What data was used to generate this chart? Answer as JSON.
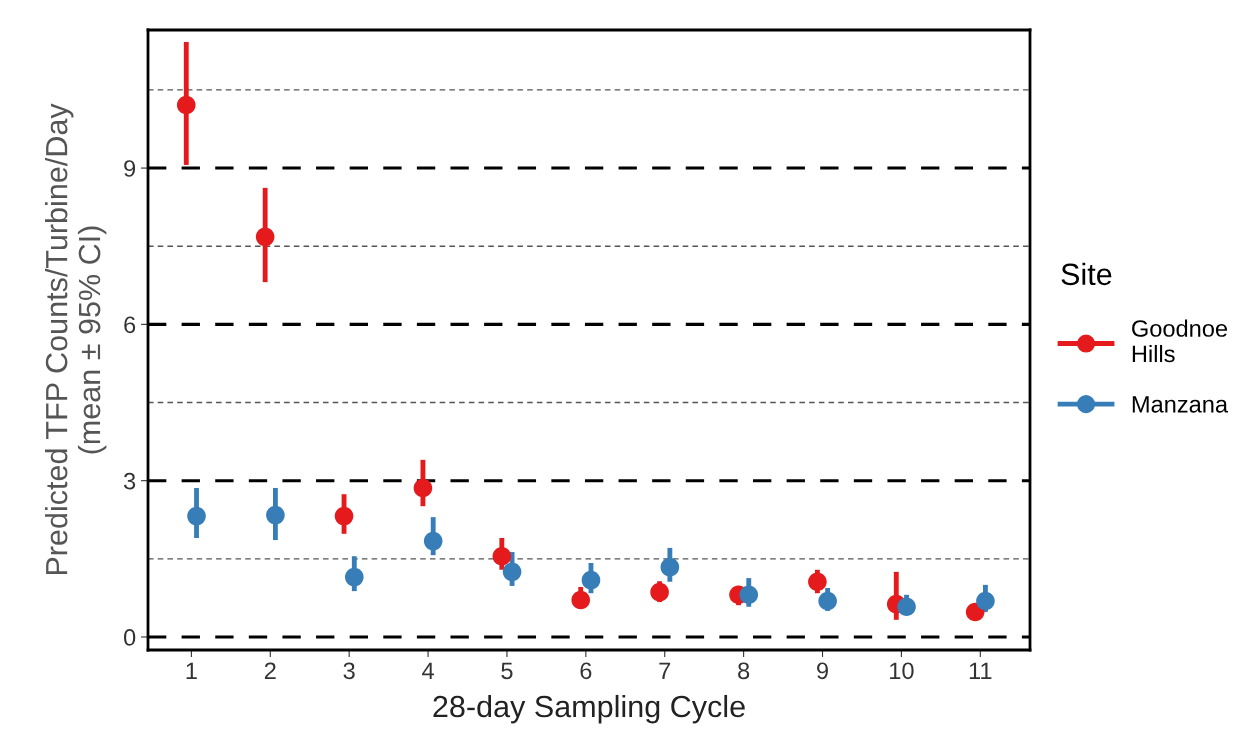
{
  "chart_data": {
    "type": "scatter",
    "xlabel": "28-day Sampling Cycle",
    "ylabel": "Predicted TFP Counts/Turbine/Day\n(mean ± 95% CI)",
    "legend_title": "Site",
    "categories": [
      "1",
      "2",
      "3",
      "4",
      "5",
      "6",
      "7",
      "8",
      "9",
      "10",
      "11"
    ],
    "series": [
      {
        "name": "Goodnoe\nHills",
        "color": "#e41a1c",
        "values": [
          10.21,
          7.68,
          2.32,
          2.86,
          1.55,
          0.71,
          0.86,
          0.81,
          1.06,
          0.63,
          0.48
        ],
        "errors": [
          [
            9.06,
            11.42
          ],
          [
            6.81,
            8.62
          ],
          [
            1.98,
            2.74
          ],
          [
            2.51,
            3.4
          ],
          [
            1.29,
            1.9
          ],
          [
            0.54,
            0.96
          ],
          [
            0.67,
            1.07
          ],
          [
            0.61,
            0.98
          ],
          [
            0.84,
            1.29
          ],
          [
            0.33,
            1.25
          ],
          [
            0.38,
            0.61
          ]
        ]
      },
      {
        "name": "Manzana",
        "color": "#377eb8",
        "values": [
          2.32,
          2.34,
          1.15,
          1.84,
          1.25,
          1.09,
          1.34,
          0.81,
          0.69,
          0.58,
          0.69
        ],
        "errors": [
          [
            1.9,
            2.86
          ],
          [
            1.86,
            2.86
          ],
          [
            0.88,
            1.55
          ],
          [
            1.57,
            2.3
          ],
          [
            0.98,
            1.63
          ],
          [
            0.84,
            1.42
          ],
          [
            1.06,
            1.71
          ],
          [
            0.58,
            1.13
          ],
          [
            0.5,
            0.94
          ],
          [
            0.58,
            0.81
          ],
          [
            0.48,
            1.0
          ]
        ]
      }
    ],
    "ylim": [
      -0.25,
      11.65
    ],
    "yticks": [
      0,
      {
        "value": 1.5,
        "label": null
      },
      3,
      {
        "value": 4.5,
        "label": null
      },
      6,
      {
        "value": 7.5,
        "label": null
      },
      9,
      {
        "value": 10.5,
        "label": null
      }
    ],
    "grid": "y",
    "legend": "right",
    "marker": "circle"
  }
}
